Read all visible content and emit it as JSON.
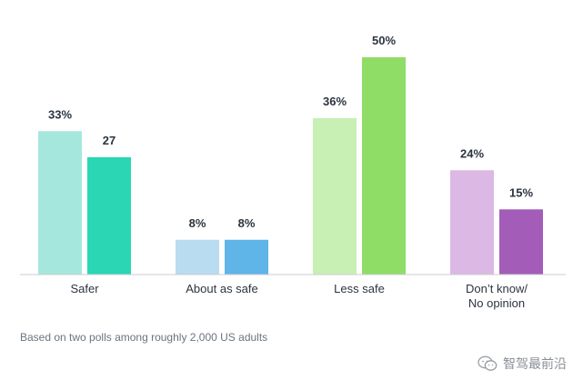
{
  "chart_data": {
    "type": "bar",
    "categories": [
      "Safer",
      "About as safe",
      "Less safe",
      "Don’t know/\nNo opinion"
    ],
    "series": [
      {
        "values": [
          33,
          8,
          36,
          24
        ],
        "value_labels": [
          "33%",
          "8%",
          "36%",
          "24%"
        ],
        "colors": [
          "#a6e7dd",
          "#b9dcf0",
          "#c8efb4",
          "#dcb8e4"
        ]
      },
      {
        "values": [
          27,
          8,
          50,
          15
        ],
        "value_labels": [
          "27",
          "8%",
          "50%",
          "15%"
        ],
        "colors": [
          "#2ad6b3",
          "#5fb4e8",
          "#8fdd66",
          "#a35db8"
        ]
      }
    ],
    "ylim": [
      0,
      50
    ],
    "grid": false,
    "legend": "none"
  },
  "footnote": "Based on two polls among roughly 2,000 US adults",
  "watermark": {
    "icon": "wechat-icon",
    "text": "智驾最前沿"
  }
}
